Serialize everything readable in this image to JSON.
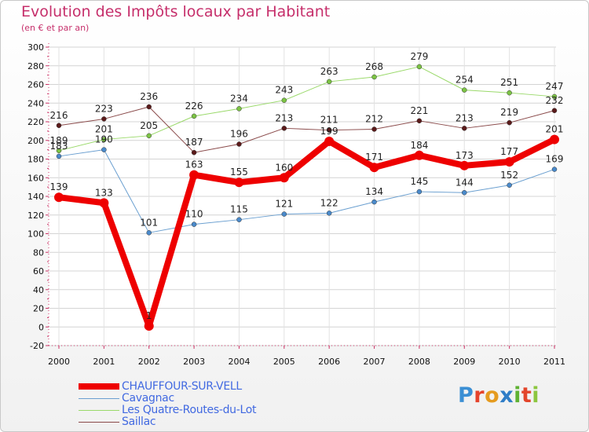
{
  "header": {
    "title": "Evolution des Impôts locaux par Habitant",
    "subtitle": "(en € et par an)"
  },
  "logo": {
    "letters": [
      "P",
      "r",
      "o",
      "x",
      "i",
      "t",
      "i"
    ],
    "colors": [
      "#3b8fd4",
      "#e5432b",
      "#e59b1f",
      "#2e7dc7",
      "#5fb233",
      "#e3452b",
      "#8cc63f"
    ]
  },
  "chart_data": {
    "type": "line",
    "title": "Evolution des Impôts locaux par Habitant",
    "subtitle": "(en € et par an)",
    "xlabel": "",
    "ylabel": "",
    "x": [
      "2000",
      "2001",
      "2002",
      "2003",
      "2004",
      "2005",
      "2006",
      "2007",
      "2008",
      "2009",
      "2010",
      "2011"
    ],
    "ylim": [
      -20,
      300
    ],
    "yticks": [
      -20,
      0,
      20,
      40,
      60,
      80,
      100,
      120,
      140,
      160,
      180,
      200,
      220,
      240,
      260,
      280,
      300
    ],
    "grid": true,
    "legend": "bottom-left",
    "series": [
      {
        "name": "Cavagnac",
        "color": "#6a9fd0",
        "marker": "#4a8acb",
        "width": 1,
        "values": [
          183,
          190,
          101,
          110,
          115,
          121,
          122,
          134,
          145,
          144,
          152,
          169
        ],
        "labels": [
          "183",
          "190",
          "101",
          "110",
          "115",
          "121",
          "122",
          "134",
          "145",
          "144",
          "152",
          "169"
        ]
      },
      {
        "name": "Les Quatre-Routes-du-Lot",
        "color": "#9ad96a",
        "marker": "#7cc444",
        "width": 1,
        "values": [
          189,
          201,
          205,
          226,
          234,
          243,
          263,
          268,
          279,
          254,
          251,
          247
        ],
        "labels": [
          "189",
          "201",
          "205",
          "226",
          "234",
          "243",
          "263",
          "268",
          "279",
          "254",
          "251",
          "247"
        ]
      },
      {
        "name": "Saillac",
        "color": "#8a4a4a",
        "marker": "#5b1a1a",
        "width": 1,
        "values": [
          216,
          223,
          236,
          187,
          196,
          213,
          211,
          212,
          221,
          213,
          219,
          232
        ],
        "labels": [
          "216",
          "223",
          "236",
          "187",
          "196",
          "213",
          "211",
          "212",
          "221",
          "213",
          "219",
          "232"
        ]
      },
      {
        "name": "CHAUFFOUR-SUR-VELL",
        "color": "#ee0000",
        "marker": "#ee0000",
        "width": 8,
        "values": [
          139,
          133,
          1,
          163,
          155,
          160,
          199,
          171,
          184,
          173,
          177,
          201
        ],
        "labels": [
          "139",
          "133",
          "1",
          "163",
          "155",
          "160",
          "199",
          "171",
          "184",
          "173",
          "177",
          "201"
        ]
      }
    ]
  },
  "legend": {
    "items": [
      {
        "name": "CHAUFFOUR-SUR-VELL",
        "color": "#ee0000",
        "width": 8
      },
      {
        "name": "Cavagnac",
        "color": "#6a9fd0",
        "width": 1
      },
      {
        "name": "Les Quatre-Routes-du-Lot",
        "color": "#9ad96a",
        "width": 1
      },
      {
        "name": "Saillac",
        "color": "#8a4a4a",
        "width": 1
      }
    ]
  }
}
